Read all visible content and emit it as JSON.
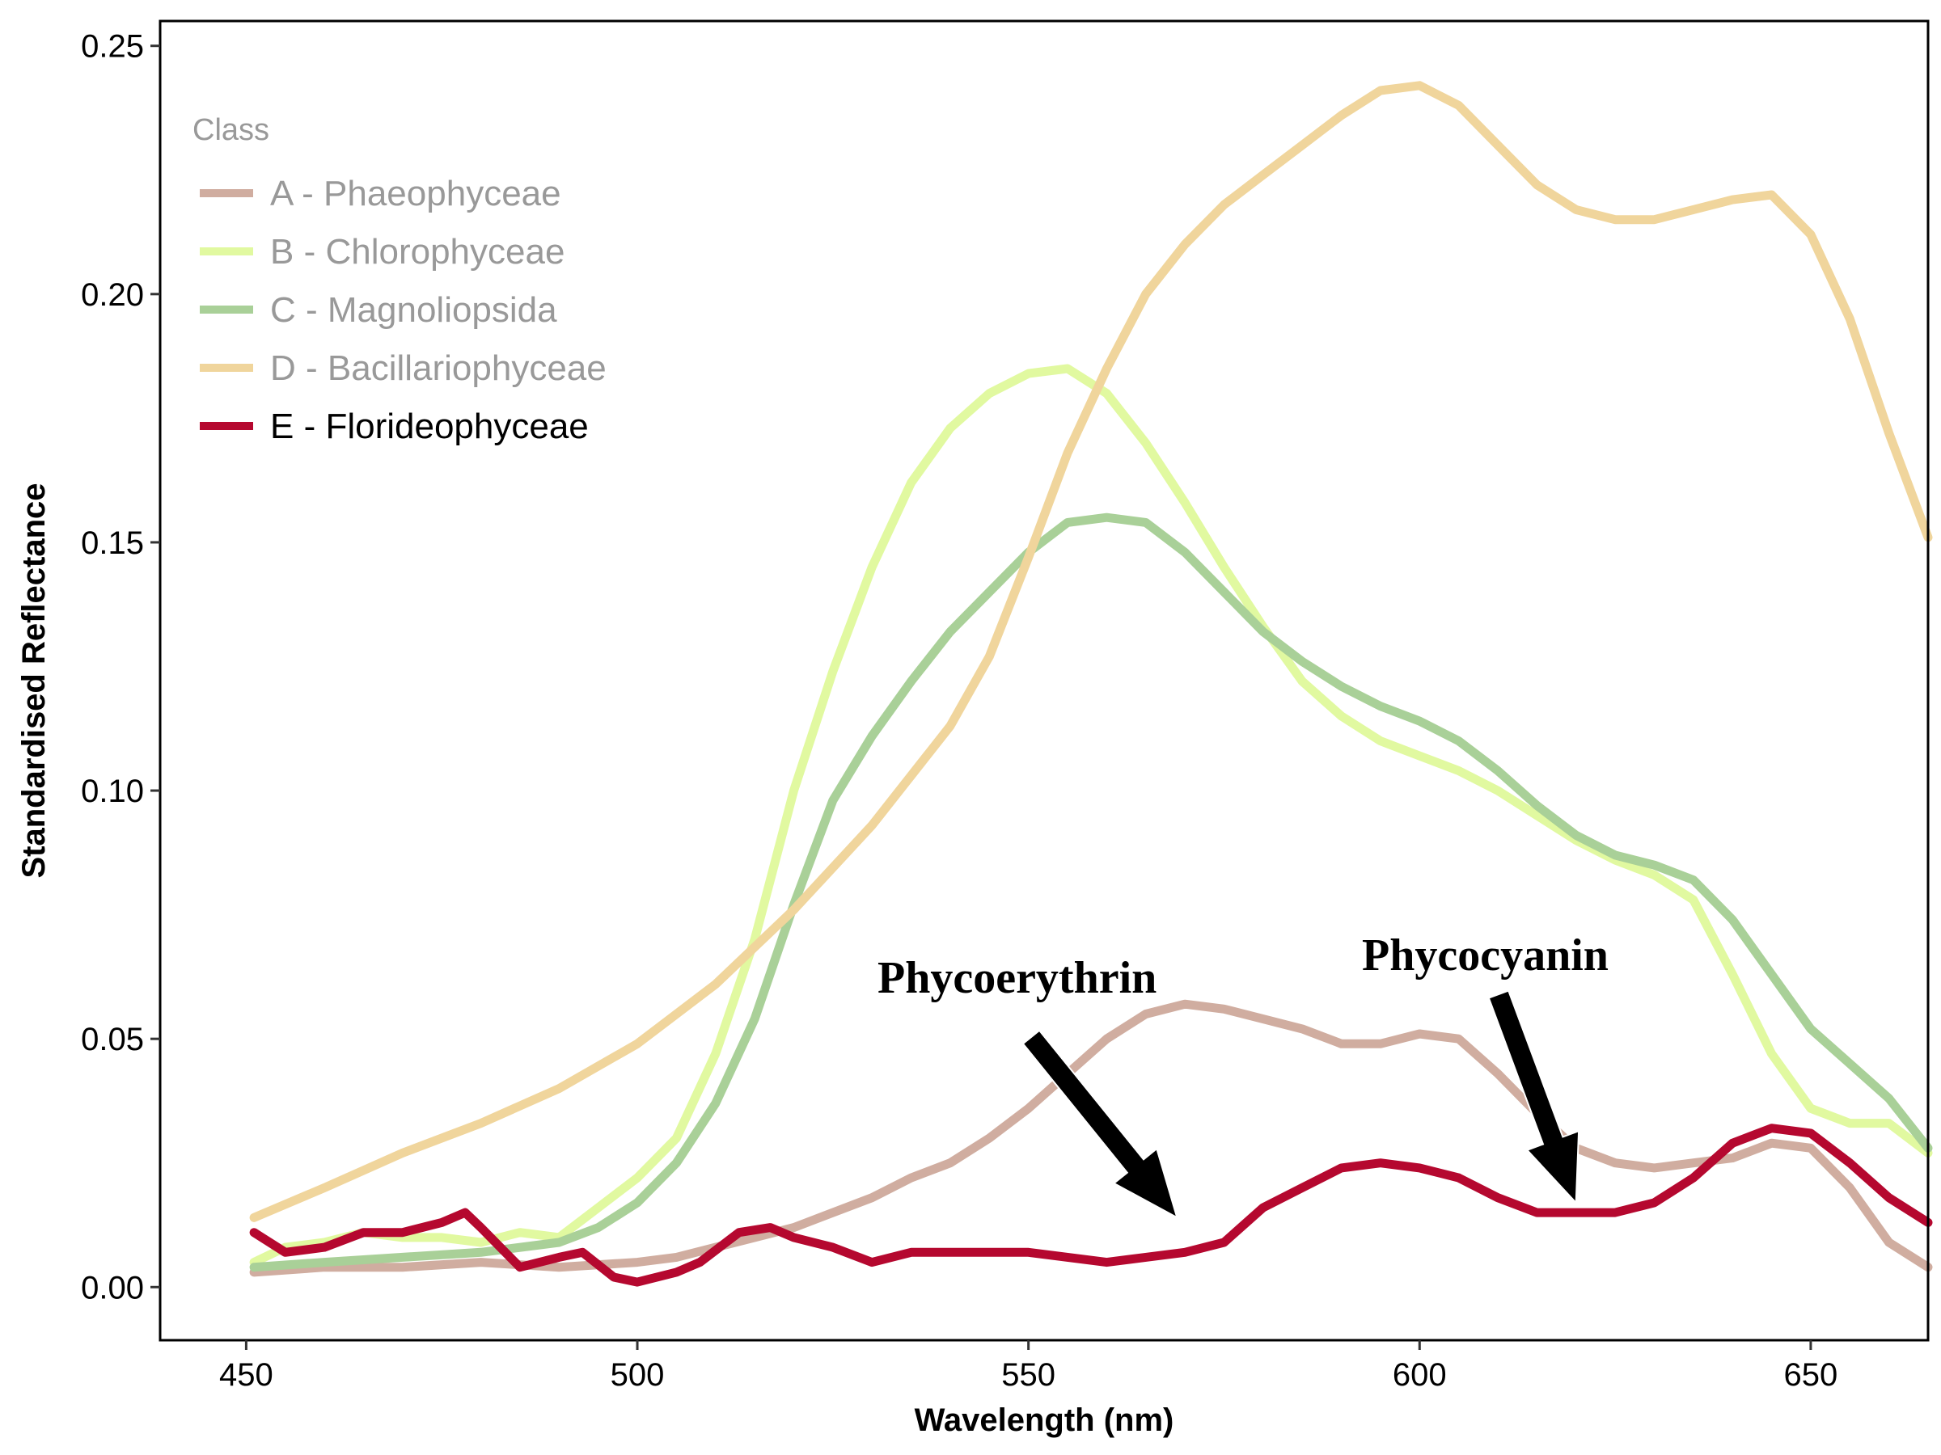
{
  "chart_data": {
    "type": "line",
    "xlabel": "Wavelength (nm)",
    "ylabel": "Standardised Reflectance",
    "xlim": [
      439,
      665
    ],
    "ylim": [
      -0.0107,
      0.255
    ],
    "xticks": [
      450,
      500,
      550,
      600,
      650
    ],
    "xtick_labels": [
      "450",
      "500",
      "550",
      "600",
      "650"
    ],
    "yticks": [
      0.0,
      0.05,
      0.1,
      0.15,
      0.2,
      0.25
    ],
    "ytick_labels": [
      "0.00",
      "0.05",
      "0.10",
      "0.15",
      "0.20",
      "0.25"
    ],
    "grid": false,
    "legend": {
      "title": "Class",
      "placement": "top-left inside plot"
    },
    "series": [
      {
        "name": "A - Phaeophyceae",
        "color": "#d0ada0",
        "legend_text_color": "#999999",
        "x": [
          451,
          460,
          470,
          480,
          490,
          500,
          505,
          510,
          515,
          520,
          525,
          530,
          535,
          540,
          545,
          550,
          555,
          560,
          565,
          570,
          575,
          580,
          585,
          590,
          595,
          600,
          605,
          610,
          615,
          620,
          625,
          630,
          635,
          640,
          645,
          650,
          655,
          660,
          665
        ],
        "values": [
          0.003,
          0.004,
          0.004,
          0.005,
          0.004,
          0.005,
          0.006,
          0.008,
          0.01,
          0.012,
          0.015,
          0.018,
          0.022,
          0.025,
          0.03,
          0.036,
          0.043,
          0.05,
          0.055,
          0.057,
          0.056,
          0.054,
          0.052,
          0.049,
          0.049,
          0.051,
          0.05,
          0.043,
          0.035,
          0.028,
          0.025,
          0.024,
          0.025,
          0.026,
          0.029,
          0.028,
          0.02,
          0.009,
          0.004
        ]
      },
      {
        "name": "B - Chlorophyceae",
        "color": "#e1f9a0",
        "legend_text_color": "#999999",
        "x": [
          451,
          455,
          460,
          465,
          470,
          475,
          480,
          485,
          490,
          495,
          500,
          505,
          510,
          515,
          520,
          525,
          530,
          535,
          540,
          545,
          550,
          555,
          560,
          565,
          570,
          575,
          580,
          585,
          590,
          595,
          600,
          605,
          610,
          615,
          620,
          625,
          630,
          635,
          640,
          645,
          650,
          655,
          660,
          665
        ],
        "values": [
          0.005,
          0.008,
          0.009,
          0.011,
          0.01,
          0.01,
          0.009,
          0.011,
          0.01,
          0.016,
          0.022,
          0.03,
          0.047,
          0.07,
          0.1,
          0.124,
          0.145,
          0.162,
          0.173,
          0.18,
          0.184,
          0.185,
          0.18,
          0.17,
          0.158,
          0.145,
          0.133,
          0.122,
          0.115,
          0.11,
          0.107,
          0.104,
          0.1,
          0.095,
          0.09,
          0.086,
          0.083,
          0.078,
          0.063,
          0.047,
          0.036,
          0.033,
          0.033,
          0.027
        ]
      },
      {
        "name": "C - Magnoliopsida",
        "color": "#a9d098",
        "legend_text_color": "#999999",
        "x": [
          451,
          460,
          470,
          480,
          490,
          495,
          500,
          505,
          510,
          515,
          520,
          525,
          530,
          535,
          540,
          545,
          550,
          555,
          560,
          565,
          570,
          575,
          580,
          585,
          590,
          595,
          600,
          605,
          610,
          615,
          620,
          625,
          630,
          635,
          640,
          645,
          650,
          655,
          660,
          665
        ],
        "values": [
          0.004,
          0.005,
          0.006,
          0.007,
          0.009,
          0.012,
          0.017,
          0.025,
          0.037,
          0.054,
          0.077,
          0.098,
          0.111,
          0.122,
          0.132,
          0.14,
          0.148,
          0.154,
          0.155,
          0.154,
          0.148,
          0.14,
          0.132,
          0.126,
          0.121,
          0.117,
          0.114,
          0.11,
          0.104,
          0.097,
          0.091,
          0.087,
          0.085,
          0.082,
          0.074,
          0.063,
          0.052,
          0.045,
          0.038,
          0.028
        ]
      },
      {
        "name": "D - Bacillariophyceae",
        "color": "#f0d59c",
        "legend_text_color": "#999999",
        "x": [
          451,
          460,
          470,
          480,
          490,
          500,
          510,
          520,
          530,
          540,
          545,
          550,
          555,
          560,
          565,
          570,
          575,
          580,
          585,
          590,
          595,
          600,
          605,
          610,
          615,
          620,
          625,
          630,
          635,
          640,
          645,
          650,
          655,
          660,
          665
        ],
        "values": [
          0.014,
          0.02,
          0.027,
          0.033,
          0.04,
          0.049,
          0.061,
          0.076,
          0.093,
          0.113,
          0.127,
          0.147,
          0.168,
          0.185,
          0.2,
          0.21,
          0.218,
          0.224,
          0.23,
          0.236,
          0.241,
          0.242,
          0.238,
          0.23,
          0.222,
          0.217,
          0.215,
          0.215,
          0.217,
          0.219,
          0.22,
          0.212,
          0.195,
          0.172,
          0.151
        ]
      },
      {
        "name": "E - Florideophyceae",
        "color": "#b5082f",
        "legend_text_color": "#000000",
        "x": [
          451,
          455,
          460,
          465,
          470,
          475,
          478,
          480,
          485,
          490,
          493,
          497,
          500,
          505,
          508,
          513,
          517,
          520,
          525,
          530,
          535,
          540,
          545,
          550,
          555,
          560,
          565,
          570,
          575,
          580,
          585,
          590,
          595,
          600,
          605,
          610,
          615,
          620,
          625,
          630,
          635,
          640,
          645,
          650,
          655,
          660,
          665
        ],
        "values": [
          0.011,
          0.007,
          0.008,
          0.011,
          0.011,
          0.013,
          0.015,
          0.012,
          0.004,
          0.006,
          0.007,
          0.002,
          0.001,
          0.003,
          0.005,
          0.011,
          0.012,
          0.01,
          0.008,
          0.005,
          0.007,
          0.007,
          0.007,
          0.007,
          0.006,
          0.005,
          0.006,
          0.007,
          0.009,
          0.016,
          0.02,
          0.024,
          0.025,
          0.024,
          0.022,
          0.018,
          0.015,
          0.015,
          0.015,
          0.017,
          0.022,
          0.029,
          0.032,
          0.031,
          0.025,
          0.018,
          0.013
        ]
      }
    ],
    "annotations": [
      {
        "text": "Phycoerythrin",
        "arrow_tip": [
          569,
          0.014
        ]
      },
      {
        "text": "Phycocyanin",
        "arrow_tip": [
          620,
          0.017
        ]
      }
    ]
  }
}
